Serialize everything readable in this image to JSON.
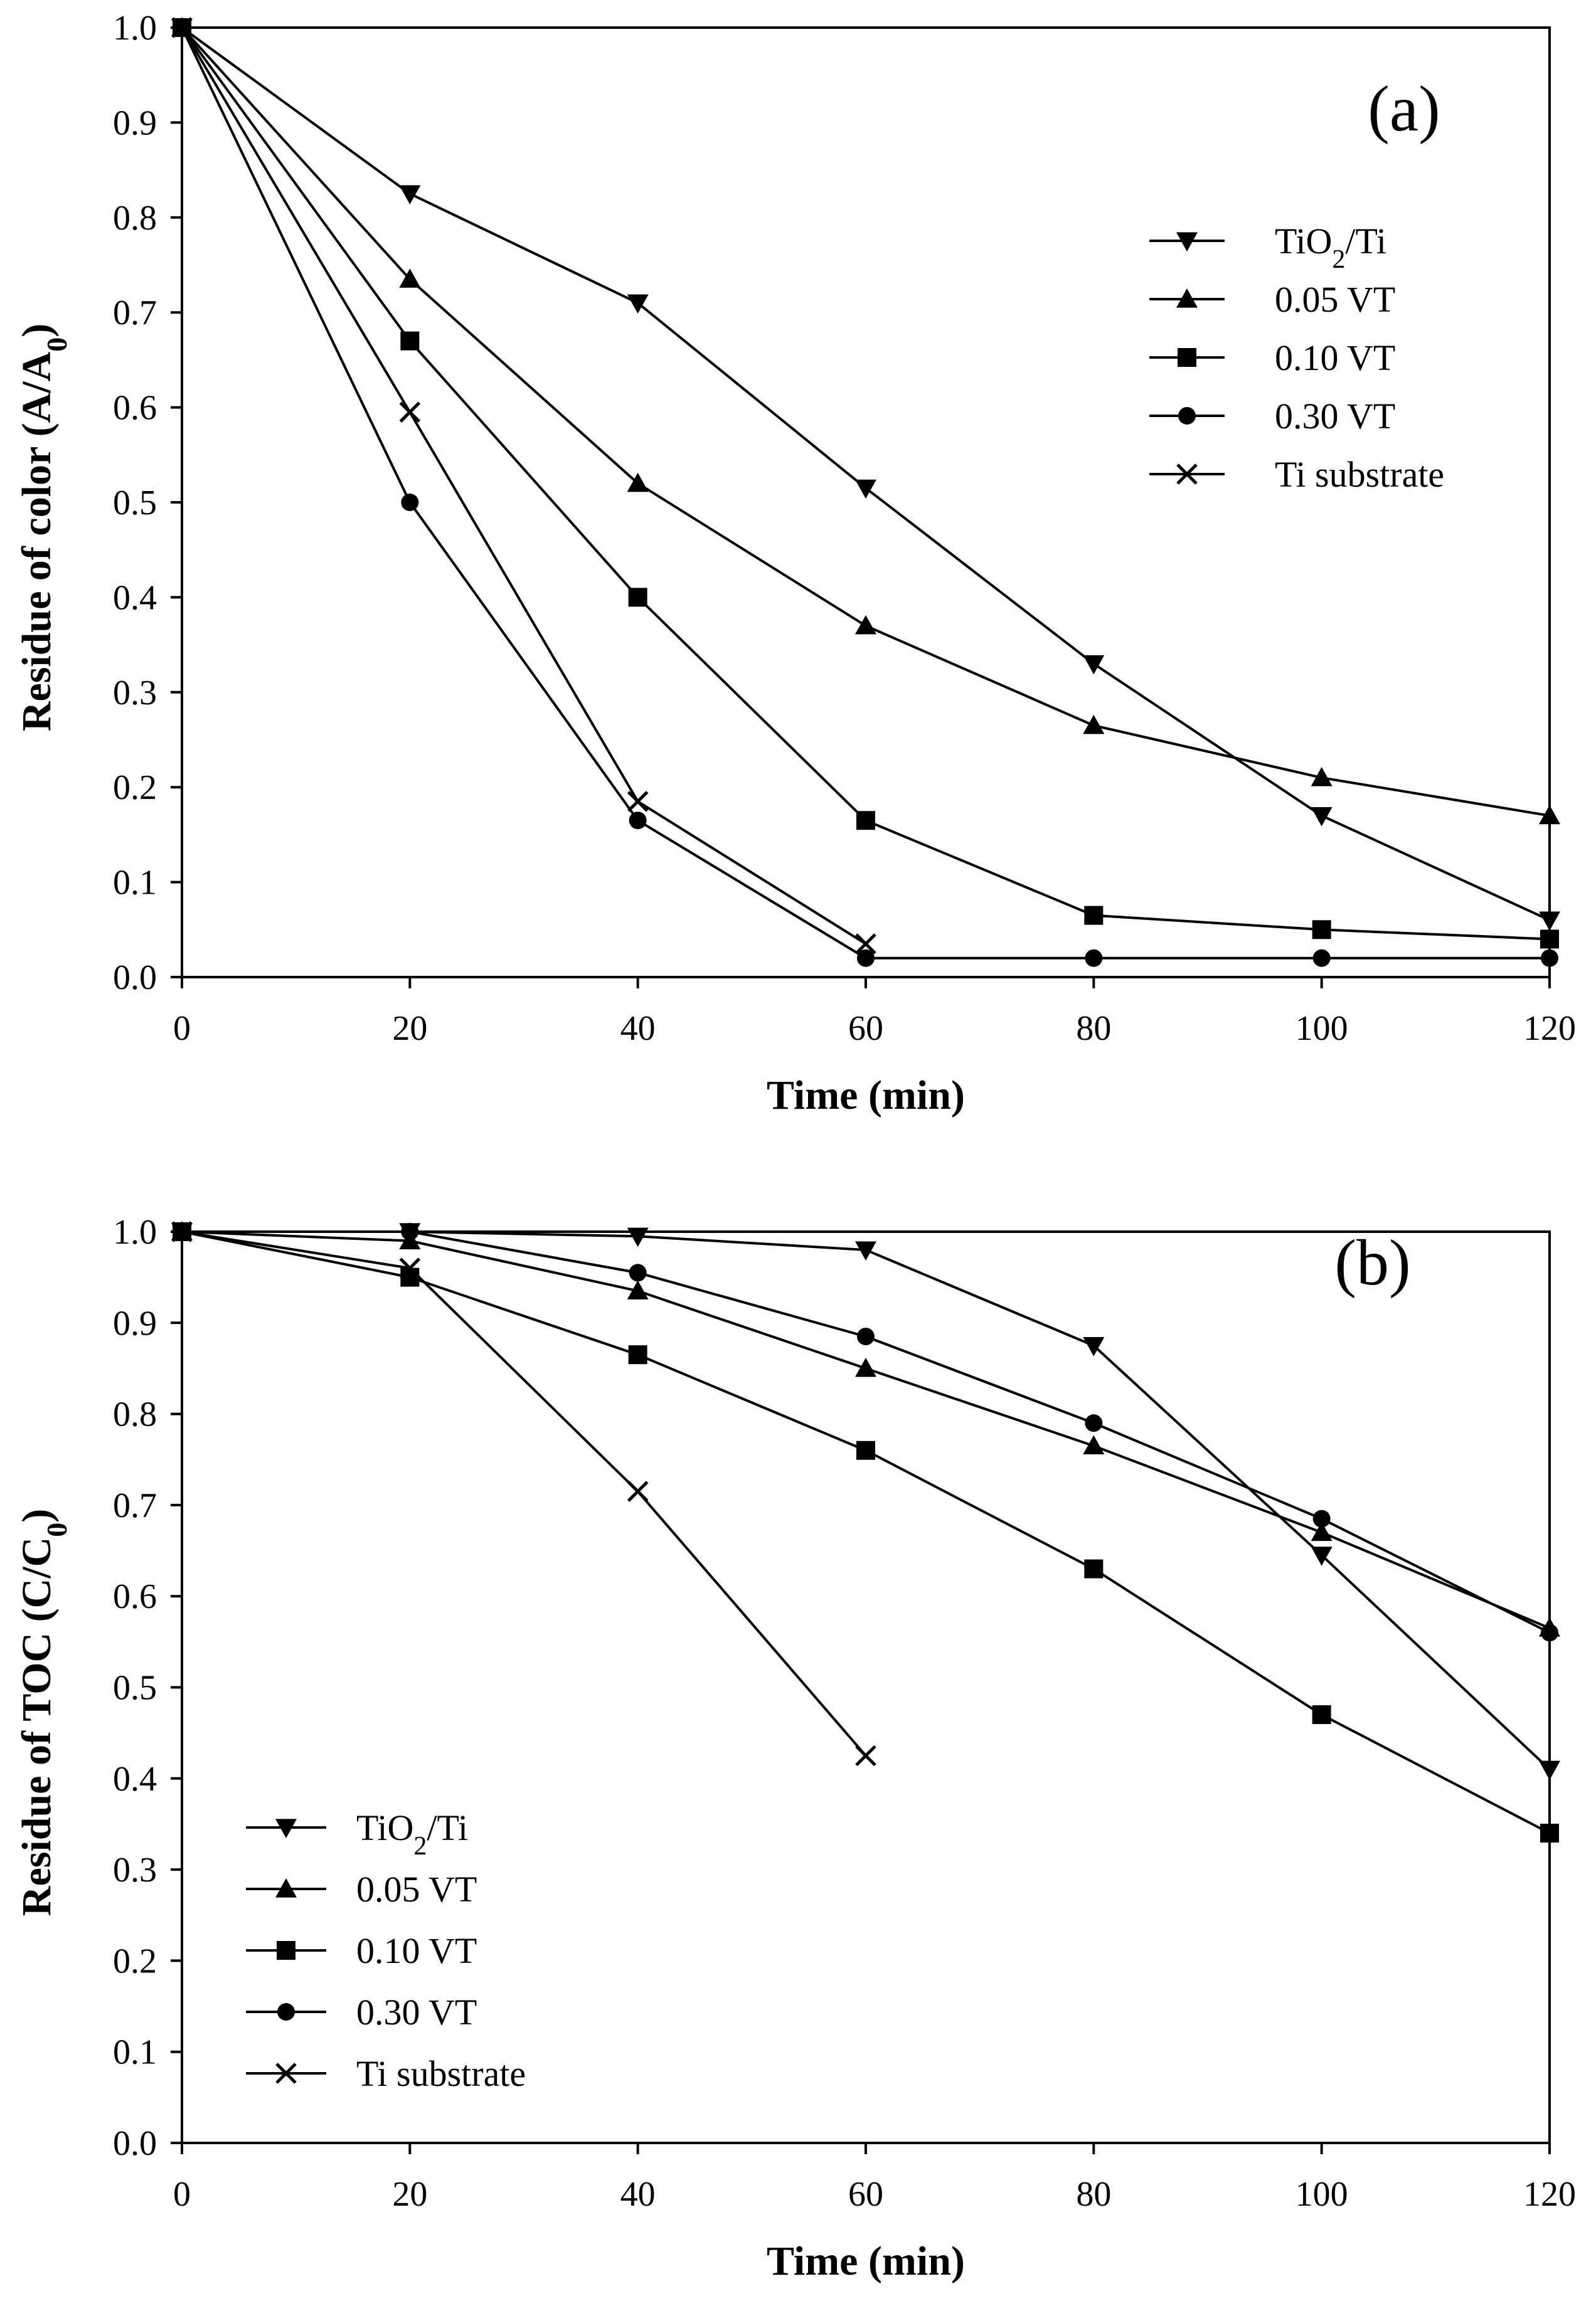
{
  "chart_data": [
    {
      "type": "line",
      "panel_label": "(a)",
      "xlabel": "Time (min)",
      "ylabel": "Residue of color (A/A0)",
      "ylabel_main": "Residue of color (A/A",
      "ylabel_sub": "0",
      "ylabel_close": ")",
      "xlim": [
        0,
        120
      ],
      "ylim": [
        0,
        1.0
      ],
      "xticks": [
        "0",
        "20",
        "40",
        "60",
        "80",
        "100",
        "120"
      ],
      "yticks": [
        "0.0",
        "0.1",
        "0.2",
        "0.3",
        "0.4",
        "0.5",
        "0.6",
        "0.7",
        "0.8",
        "0.9",
        "1.0"
      ],
      "legend_position": "top-right",
      "grid": false,
      "series": [
        {
          "name": "TiO2/Ti",
          "label_main": "TiO",
          "label_sub": "2",
          "label_rest": "/Ti",
          "marker": "triangle-down",
          "x": [
            0,
            20,
            40,
            60,
            80,
            100,
            120
          ],
          "y": [
            1.0,
            0.825,
            0.71,
            0.515,
            0.33,
            0.17,
            0.06
          ]
        },
        {
          "name": "0.05 VT",
          "label_main": "0.05 VT",
          "marker": "triangle-up",
          "x": [
            0,
            20,
            40,
            60,
            80,
            100,
            120
          ],
          "y": [
            1.0,
            0.735,
            0.52,
            0.37,
            0.265,
            0.21,
            0.17
          ]
        },
        {
          "name": "0.10 VT",
          "label_main": "0.10 VT",
          "marker": "square",
          "x": [
            0,
            20,
            40,
            60,
            80,
            100,
            120
          ],
          "y": [
            1.0,
            0.67,
            0.4,
            0.165,
            0.065,
            0.05,
            0.04
          ]
        },
        {
          "name": "0.30 VT",
          "label_main": "0.30 VT",
          "marker": "circle",
          "x": [
            0,
            20,
            40,
            60,
            80,
            100,
            120
          ],
          "y": [
            1.0,
            0.5,
            0.165,
            0.02,
            0.02,
            0.02,
            0.02
          ]
        },
        {
          "name": "Ti substrate",
          "label_main": "Ti substrate",
          "marker": "x",
          "x": [
            0,
            20,
            40,
            60
          ],
          "y": [
            1.0,
            0.595,
            0.185,
            0.035
          ]
        }
      ]
    },
    {
      "type": "line",
      "panel_label": "(b)",
      "xlabel": "Time (min)",
      "ylabel": "Residue of TOC (C/C0)",
      "ylabel_main": "Residue of TOC (C/C",
      "ylabel_sub": "0",
      "ylabel_close": ")",
      "xlim": [
        0,
        120
      ],
      "ylim": [
        0,
        1.0
      ],
      "xticks": [
        "0",
        "20",
        "40",
        "60",
        "80",
        "100",
        "120"
      ],
      "yticks": [
        "0.0",
        "0.1",
        "0.2",
        "0.3",
        "0.4",
        "0.5",
        "0.6",
        "0.7",
        "0.8",
        "0.9",
        "1.0"
      ],
      "legend_position": "bottom-left",
      "grid": false,
      "series": [
        {
          "name": "TiO2/Ti",
          "label_main": "TiO",
          "label_sub": "2",
          "label_rest": "/Ti",
          "marker": "triangle-down",
          "x": [
            0,
            20,
            40,
            60,
            80,
            100,
            120
          ],
          "y": [
            1.0,
            1.0,
            0.995,
            0.98,
            0.875,
            0.645,
            0.41
          ]
        },
        {
          "name": "0.05 VT",
          "label_main": "0.05 VT",
          "marker": "triangle-up",
          "x": [
            0,
            20,
            40,
            60,
            80,
            100,
            120
          ],
          "y": [
            1.0,
            0.99,
            0.935,
            0.85,
            0.765,
            0.67,
            0.565
          ]
        },
        {
          "name": "0.10 VT",
          "label_main": "0.10 VT",
          "marker": "square",
          "x": [
            0,
            20,
            40,
            60,
            80,
            100,
            120
          ],
          "y": [
            1.0,
            0.95,
            0.865,
            0.76,
            0.63,
            0.47,
            0.34
          ]
        },
        {
          "name": "0.30 VT",
          "label_main": "0.30 VT",
          "marker": "circle",
          "x": [
            0,
            20,
            40,
            60,
            80,
            100,
            120
          ],
          "y": [
            1.0,
            1.0,
            0.955,
            0.885,
            0.79,
            0.685,
            0.56
          ]
        },
        {
          "name": "Ti substrate",
          "label_main": "Ti substrate",
          "marker": "x",
          "x": [
            0,
            20,
            40,
            60
          ],
          "y": [
            1.0,
            0.96,
            0.715,
            0.425
          ]
        }
      ]
    }
  ]
}
